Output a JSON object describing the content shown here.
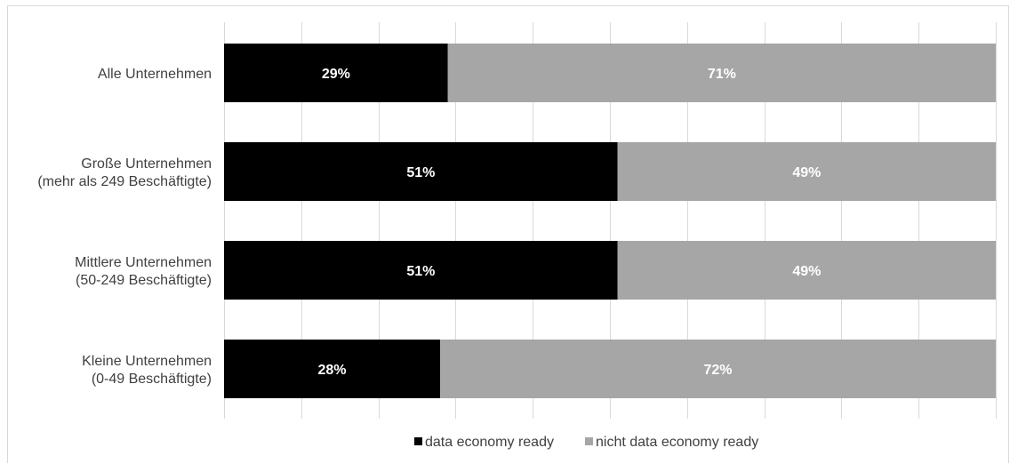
{
  "chart_data": {
    "type": "bar",
    "orientation": "horizontal",
    "stacked": true,
    "percent": true,
    "categories": [
      [
        "Alle Unternehmen"
      ],
      [
        "Große Unternehmen",
        "(mehr als 249 Beschäftigte)"
      ],
      [
        "Mittlere Unternehmen",
        "(50-249 Beschäftigte)"
      ],
      [
        "Kleine Unternehmen",
        "(0-49 Beschäftigte)"
      ]
    ],
    "series": [
      {
        "name": "data economy ready",
        "values": [
          29,
          51,
          51,
          28
        ],
        "color": "#000000",
        "labels": [
          "29%",
          "51%",
          "51%",
          "28%"
        ]
      },
      {
        "name": "nicht data economy ready",
        "values": [
          71,
          49,
          49,
          72
        ],
        "color": "#a6a6a6",
        "labels": [
          "71%",
          "49%",
          "49%",
          "72%"
        ]
      }
    ],
    "xlim": [
      0,
      100
    ],
    "grid": true,
    "legend": "bottom",
    "gridline_color": "#d9d9d9"
  }
}
